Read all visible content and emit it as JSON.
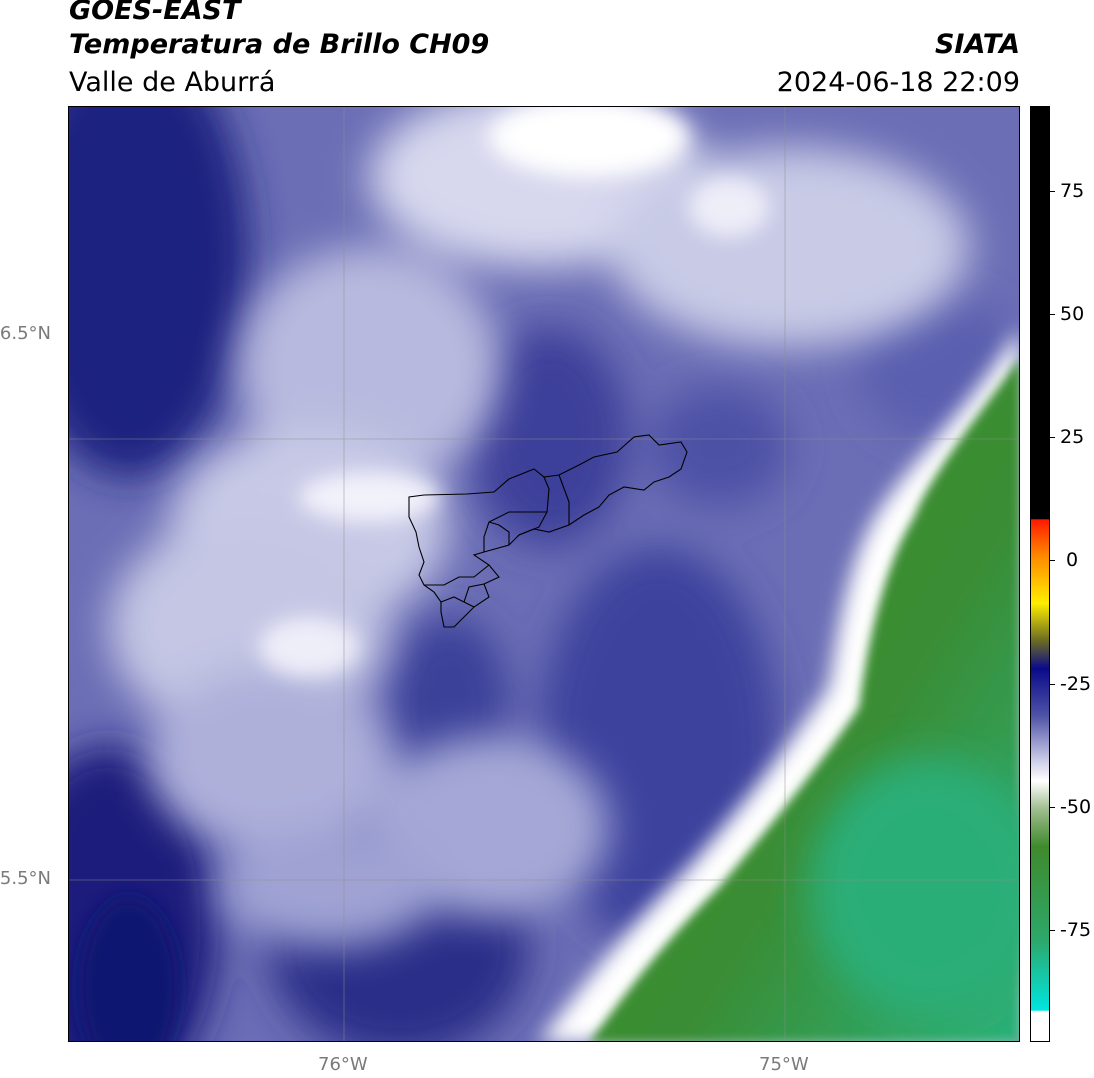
{
  "header": {
    "satellite": "GOES-EAST",
    "product": "Temperatura de Brillo CH09",
    "region": "Valle de Aburrá",
    "agency": "SIATA",
    "datetime": "2024-06-18 22:09"
  },
  "map": {
    "lat_labels": [
      "6.5°N",
      "5.5°N"
    ],
    "lon_labels": [
      "76°W",
      "75°W"
    ],
    "colors": {
      "deep_blue": "#1b1f7a",
      "mid_blue": "#5558a8",
      "light_lavender": "#c9cbe6",
      "white": "#ffffff",
      "green": "#3f8a2c",
      "teal": "#2bb17a",
      "boundary": "#000000"
    }
  },
  "colorbar": {
    "tick_labels": [
      "75",
      "50",
      "25",
      "0",
      "-25",
      "-50",
      "-75"
    ],
    "tick_values": [
      75,
      50,
      25,
      0,
      -25,
      -50,
      -75
    ],
    "range": [
      -95,
      92
    ]
  }
}
